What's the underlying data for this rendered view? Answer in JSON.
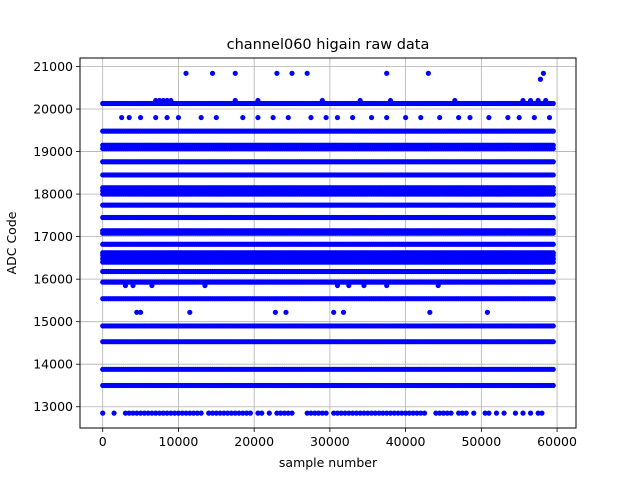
{
  "chart_data": {
    "type": "scatter",
    "title": "channel060 higain raw data",
    "xlabel": "sample number",
    "ylabel": "ADC Code",
    "xlim": [
      -3000,
      62500
    ],
    "ylim": [
      12500,
      21200
    ],
    "xticks": [
      0,
      10000,
      20000,
      30000,
      40000,
      50000,
      60000
    ],
    "xtick_labels": [
      "0",
      "10000",
      "20000",
      "30000",
      "40000",
      "50000",
      "60000"
    ],
    "yticks": [
      13000,
      14000,
      15000,
      16000,
      17000,
      18000,
      19000,
      20000,
      21000
    ],
    "ytick_labels": [
      "13000",
      "14000",
      "15000",
      "16000",
      "17000",
      "18000",
      "19000",
      "20000",
      "21000"
    ],
    "grid": true,
    "marker_color": "#0000ff",
    "sample_range": [
      0,
      59500
    ],
    "levels": [
      {
        "y": 12850,
        "x_samples": [
          0,
          1500,
          3000,
          3500,
          4000,
          4500,
          5000,
          5500,
          6000,
          6500,
          7000,
          7500,
          8000,
          8500,
          9000,
          9500,
          10000,
          10500,
          11000,
          11500,
          12000,
          12500,
          13000,
          14000,
          14500,
          15000,
          15500,
          16000,
          16500,
          17000,
          17500,
          18000,
          18500,
          19000,
          19500,
          20500,
          21000,
          22000,
          23000,
          23500,
          24000,
          24500,
          25000,
          27000,
          27500,
          28000,
          28500,
          29000,
          29500,
          30500,
          31000,
          31500,
          32000,
          32500,
          33000,
          33500,
          34000,
          34500,
          35000,
          35500,
          36000,
          36500,
          37000,
          37500,
          38000,
          38500,
          39000,
          39500,
          40000,
          40500,
          41000,
          41500,
          42000,
          42500,
          44000,
          44500,
          45000,
          45500,
          46000,
          47000,
          47500,
          48000,
          49000,
          50500,
          51000,
          52000,
          53000,
          54500,
          55500,
          56500,
          57500,
          58000
        ]
      },
      {
        "y": 13500,
        "x_samples": "dense"
      },
      {
        "y": 13880,
        "x_samples": "dense"
      },
      {
        "y": 14530,
        "x_samples": "dense"
      },
      {
        "y": 14900,
        "x_samples": "dense"
      },
      {
        "y": 15220,
        "x_samples": [
          4500,
          5000,
          11500,
          22800,
          24200,
          30500,
          31800,
          43200,
          50800
        ]
      },
      {
        "y": 15540,
        "x_samples": "dense"
      },
      {
        "y": 15850,
        "x_samples": [
          3000,
          4000,
          6500,
          13500,
          31000,
          32500,
          34500,
          37500,
          44300
        ]
      },
      {
        "y": 15930,
        "x_samples": "dense"
      },
      {
        "y": 16180,
        "x_samples": "dense"
      },
      {
        "y": 16400,
        "x_samples": "dense"
      },
      {
        "y": 16480,
        "x_samples": "dense"
      },
      {
        "y": 16560,
        "x_samples": "dense"
      },
      {
        "y": 16620,
        "x_samples": "dense"
      },
      {
        "y": 16820,
        "x_samples": "dense"
      },
      {
        "y": 17080,
        "x_samples": "dense"
      },
      {
        "y": 17140,
        "x_samples": "dense"
      },
      {
        "y": 17450,
        "x_samples": "dense"
      },
      {
        "y": 17740,
        "x_samples": "dense"
      },
      {
        "y": 18000,
        "x_samples": "dense"
      },
      {
        "y": 18080,
        "x_samples": "dense"
      },
      {
        "y": 18150,
        "x_samples": "dense"
      },
      {
        "y": 18450,
        "x_samples": "dense"
      },
      {
        "y": 18760,
        "x_samples": "dense"
      },
      {
        "y": 19070,
        "x_samples": "dense"
      },
      {
        "y": 19150,
        "x_samples": "dense"
      },
      {
        "y": 19480,
        "x_samples": "dense"
      },
      {
        "y": 19800,
        "x_samples": [
          2500,
          3500,
          5000,
          7000,
          8500,
          10000,
          13000,
          15000,
          18500,
          20500,
          22500,
          24500,
          27500,
          29500,
          31000,
          33000,
          35500,
          37500,
          40000,
          42000,
          44500,
          47000,
          48500,
          51000,
          53500,
          55000,
          57000,
          59000
        ]
      },
      {
        "y": 20130,
        "x_samples": "dense"
      },
      {
        "y": 20200,
        "x_samples": [
          7000,
          7500,
          8000,
          8500,
          9000,
          17500,
          20500,
          29000,
          34000,
          38000,
          46500,
          55500,
          56500,
          57500,
          58500
        ]
      },
      {
        "y": 20700,
        "x_samples": [
          57800
        ]
      },
      {
        "y": 20840,
        "x_samples": [
          11000,
          14500,
          17500,
          23000,
          25000,
          27000,
          37500,
          43000,
          58200
        ]
      }
    ]
  }
}
